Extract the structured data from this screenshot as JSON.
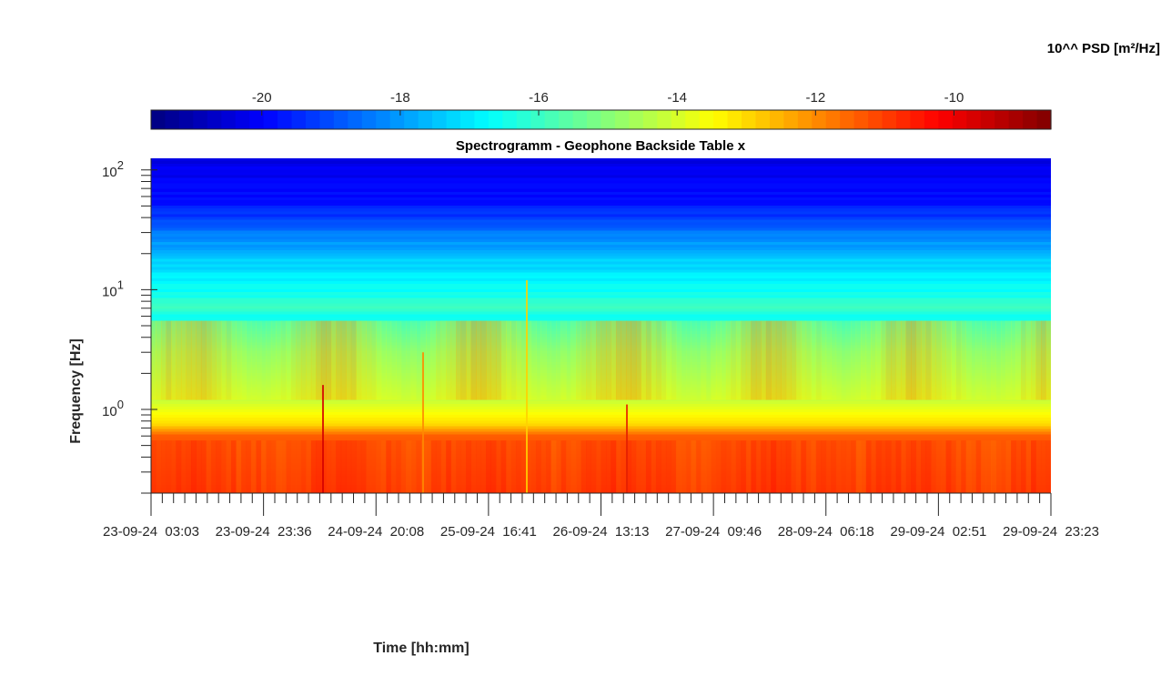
{
  "chart_data": {
    "type": "heatmap",
    "title": "Spectrogramm - Geophone Backside Table x",
    "xlabel": "Time [hh:mm]",
    "ylabel": "Frequency [Hz]",
    "y_scale": "log",
    "ylim": [
      0.2,
      125
    ],
    "y_ticks": [
      {
        "value": 1,
        "base": "10",
        "exp": "0"
      },
      {
        "value": 10,
        "base": "10",
        "exp": "1"
      },
      {
        "value": 100,
        "base": "10",
        "exp": "2"
      }
    ],
    "x_tick_labels": [
      "23-09-24  03:03",
      "23-09-24  23:36",
      "24-09-24  20:08",
      "25-09-24  16:41",
      "26-09-24  13:13",
      "27-09-24  09:46",
      "28-09-24  06:18",
      "29-09-24  02:51",
      "29-09-24  23:23"
    ],
    "colorbar": {
      "label": "10^^ PSD [m²/Hz]",
      "colormap": "jet",
      "range": [
        -21.6,
        -8.6
      ],
      "tick_values": [
        -20,
        -18,
        -16,
        -14,
        -12,
        -10
      ],
      "tick_labels": [
        "-20",
        "-18",
        "-16",
        "-14",
        "-12",
        "-10"
      ]
    },
    "psd_profile": [
      {
        "freq_hz": 0.2,
        "log10_psd": -10.9
      },
      {
        "freq_hz": 0.6,
        "log10_psd": -11.4
      },
      {
        "freq_hz": 0.75,
        "log10_psd": -13.0
      },
      {
        "freq_hz": 1.2,
        "log10_psd": -14.2
      },
      {
        "freq_hz": 3,
        "log10_psd": -15.3
      },
      {
        "freq_hz": 6,
        "log10_psd": -16.6
      },
      {
        "freq_hz": 7,
        "log10_psd": -15.9
      },
      {
        "freq_hz": 10,
        "log10_psd": -16.6
      },
      {
        "freq_hz": 20,
        "log10_psd": -17.6
      },
      {
        "freq_hz": 50,
        "log10_psd": -19.7
      },
      {
        "freq_hz": 125,
        "log10_psd": -20.4
      }
    ]
  }
}
